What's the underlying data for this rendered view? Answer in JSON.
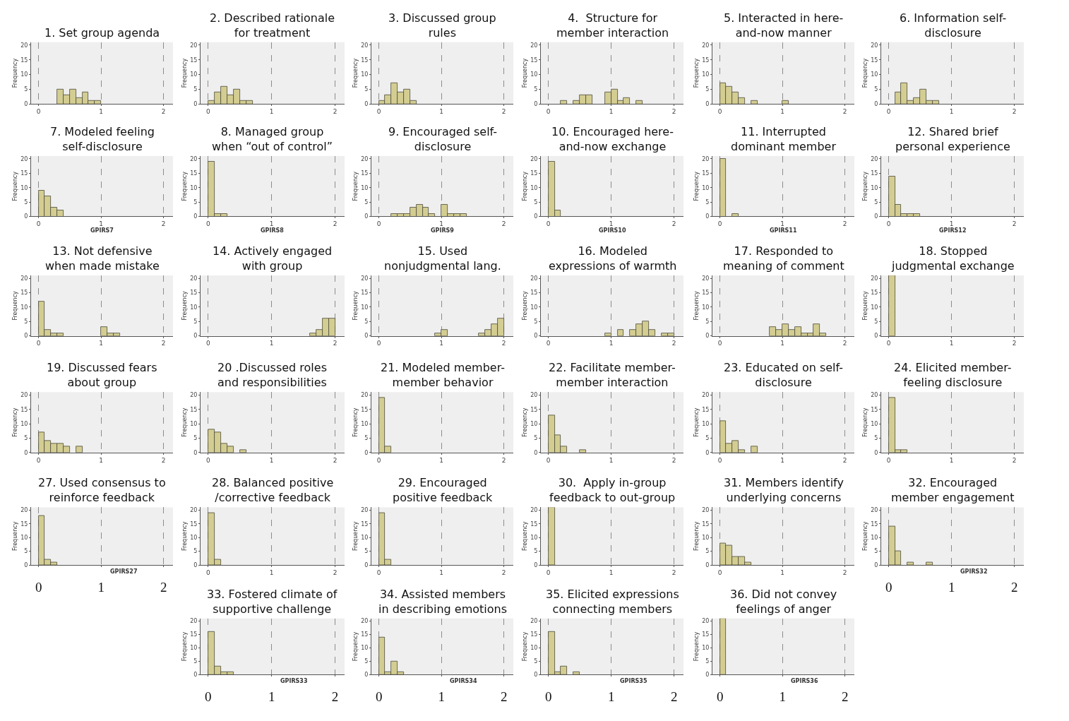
{
  "chart_data": [
    {
      "type": "histogram",
      "title": "1. Set group agenda",
      "ylabel": "Frequency",
      "bins": [
        0.3,
        0.4,
        0.5,
        0.6,
        0.7,
        0.8,
        0.9,
        1.0
      ],
      "values": [
        5,
        3,
        5,
        2,
        4,
        1,
        1
      ],
      "color": "#d4cd92",
      "xlim": [
        -0.12,
        2.15
      ],
      "xticks": [
        0,
        1,
        2
      ],
      "ylim": [
        0,
        21
      ],
      "yticks": [
        0,
        5,
        10,
        15,
        20
      ],
      "grid": "x"
    },
    {
      "type": "histogram",
      "title": "2. Described rationale\nfor treatment",
      "ylabel": "Frequency",
      "bins": [
        0,
        0.1,
        0.2,
        0.3,
        0.4,
        0.5,
        0.6,
        0.7
      ],
      "values": [
        1,
        4,
        6,
        3,
        5,
        1,
        1
      ],
      "color": "#d4cd92",
      "xlim": [
        -0.12,
        2.15
      ],
      "xticks": [
        0,
        1,
        2
      ],
      "ylim": [
        0,
        21
      ],
      "yticks": [
        0,
        5,
        10,
        15,
        20
      ],
      "grid": "x"
    },
    {
      "type": "histogram",
      "title": "3. Discussed group\nrules",
      "ylabel": "Frequency",
      "bins": [
        0,
        0.1,
        0.2,
        0.3,
        0.4,
        0.5,
        0.6
      ],
      "values": [
        1,
        3,
        7,
        4,
        5,
        1
      ],
      "color": "#d4cd92",
      "xlim": [
        -0.12,
        2.15
      ],
      "xticks": [
        0,
        1,
        2
      ],
      "ylim": [
        0,
        21
      ],
      "yticks": [
        0,
        5,
        10,
        15,
        20
      ],
      "grid": "x"
    },
    {
      "type": "histogram",
      "title": "4.  Structure for\nmember interaction",
      "ylabel": "Frequency",
      "bins": [
        0.2,
        0.3,
        0.4,
        0.5,
        0.6,
        0.7,
        0.8,
        0.9,
        1.0,
        1.1,
        1.2,
        1.3,
        1.4,
        1.5
      ],
      "values": [
        1,
        0,
        1,
        3,
        3,
        0,
        0,
        4,
        5,
        1,
        2,
        0,
        1
      ],
      "color": "#d4cd92",
      "xlim": [
        -0.12,
        2.15
      ],
      "xticks": [
        0,
        1,
        2
      ],
      "ylim": [
        0,
        21
      ],
      "yticks": [
        0,
        5,
        10,
        15,
        20
      ],
      "grid": "x"
    },
    {
      "type": "histogram",
      "title": "5. Interacted in here-\nand-now manner",
      "ylabel": "Frequency",
      "bins": [
        0,
        0.1,
        0.2,
        0.3,
        0.4,
        0.5,
        0.6,
        0.7,
        0.8,
        0.9,
        1.0,
        1.1
      ],
      "values": [
        7,
        6,
        4,
        2,
        0,
        1,
        0,
        0,
        0,
        0,
        1
      ],
      "color": "#d4cd92",
      "xlim": [
        -0.12,
        2.15
      ],
      "xticks": [
        0,
        1,
        2
      ],
      "ylim": [
        0,
        21
      ],
      "yticks": [
        0,
        5,
        10,
        15,
        20
      ],
      "grid": "x"
    },
    {
      "type": "histogram",
      "title": "6. Information self-\ndisclosure",
      "ylabel": "Frequency",
      "bins": [
        0.1,
        0.2,
        0.3,
        0.4,
        0.5,
        0.6,
        0.7,
        0.8
      ],
      "values": [
        4,
        7,
        1,
        2,
        5,
        1,
        1
      ],
      "color": "#d4cd92",
      "xlim": [
        -0.12,
        2.15
      ],
      "xticks": [
        0,
        1,
        2
      ],
      "ylim": [
        0,
        21
      ],
      "yticks": [
        0,
        5,
        10,
        15,
        20
      ],
      "grid": "x"
    },
    {
      "type": "histogram",
      "title": "7. Modeled feeling\nself-disclosure",
      "ylabel": "Frequency",
      "xlabel": "GPIRS7",
      "bins": [
        0,
        0.1,
        0.2,
        0.3,
        0.4
      ],
      "values": [
        9,
        7,
        3,
        2
      ],
      "color": "#d4cd92",
      "xlim": [
        -0.12,
        2.15
      ],
      "xticks": [
        0,
        1,
        2
      ],
      "ylim": [
        0,
        21
      ],
      "yticks": [
        0,
        5,
        10,
        15,
        20
      ],
      "grid": "x"
    },
    {
      "type": "histogram",
      "title": "8. Managed group\nwhen “out of control”",
      "ylabel": "Frequency",
      "xlabel": "GPIRS8",
      "bins": [
        0,
        0.1,
        0.2,
        0.3
      ],
      "values": [
        19,
        1,
        1
      ],
      "color": "#d4cd92",
      "xlim": [
        -0.12,
        2.15
      ],
      "xticks": [
        0,
        1,
        2
      ],
      "ylim": [
        0,
        21
      ],
      "yticks": [
        0,
        5,
        10,
        15,
        20
      ],
      "grid": "x"
    },
    {
      "type": "histogram",
      "title": "9. Encouraged self-\ndisclosure",
      "ylabel": "Frequency",
      "xlabel": "GPIRS9",
      "bins": [
        0.2,
        0.3,
        0.4,
        0.5,
        0.6,
        0.7,
        0.8,
        0.9,
        1.0,
        1.1,
        1.2,
        1.3,
        1.4
      ],
      "values": [
        1,
        1,
        1,
        3,
        4,
        3,
        1,
        0,
        4,
        1,
        1,
        1
      ],
      "color": "#d4cd92",
      "xlim": [
        -0.12,
        2.15
      ],
      "xticks": [
        0,
        1,
        2
      ],
      "ylim": [
        0,
        21
      ],
      "yticks": [
        0,
        5,
        10,
        15,
        20
      ],
      "grid": "x"
    },
    {
      "type": "histogram",
      "title": "10. Encouraged here-\nand-now exchange",
      "ylabel": "Frequency",
      "xlabel": "GPIRS10",
      "bins": [
        0,
        0.1,
        0.2
      ],
      "values": [
        19,
        2
      ],
      "color": "#d4cd92",
      "xlim": [
        -0.12,
        2.15
      ],
      "xticks": [
        0,
        1,
        2
      ],
      "ylim": [
        0,
        21
      ],
      "yticks": [
        0,
        5,
        10,
        15,
        20
      ],
      "grid": "x"
    },
    {
      "type": "histogram",
      "title": "11. Interrupted\ndominant member",
      "ylabel": "Frequency",
      "xlabel": "GPIRS11",
      "bins": [
        0,
        0.1,
        0.2,
        0.3
      ],
      "values": [
        20,
        0,
        1
      ],
      "color": "#d4cd92",
      "xlim": [
        -0.12,
        2.15
      ],
      "xticks": [
        0,
        1,
        2
      ],
      "ylim": [
        0,
        21
      ],
      "yticks": [
        0,
        5,
        10,
        15,
        20
      ],
      "grid": "x"
    },
    {
      "type": "histogram",
      "title": "12. Shared brief\npersonal experience",
      "ylabel": "Frequency",
      "xlabel": "GPIRS12",
      "bins": [
        0,
        0.1,
        0.2,
        0.3,
        0.4,
        0.5
      ],
      "values": [
        14,
        4,
        1,
        1,
        1
      ],
      "color": "#d4cd92",
      "xlim": [
        -0.12,
        2.15
      ],
      "xticks": [
        0,
        1,
        2
      ],
      "ylim": [
        0,
        21
      ],
      "yticks": [
        0,
        5,
        10,
        15,
        20
      ],
      "grid": "x"
    },
    {
      "type": "histogram",
      "title": "13. Not defensive\nwhen made mistake",
      "ylabel": "Frequency",
      "bins": [
        0,
        0.1,
        0.2,
        0.3,
        0.4,
        0.5,
        0.6,
        0.7,
        0.8,
        0.9,
        1.0,
        1.1,
        1.2,
        1.3
      ],
      "values": [
        12,
        2,
        1,
        1,
        0,
        0,
        0,
        0,
        0,
        0,
        3,
        1,
        1
      ],
      "color": "#d4cd92",
      "xlim": [
        -0.12,
        2.15
      ],
      "xticks": [
        0,
        1,
        2
      ],
      "ylim": [
        0,
        21
      ],
      "yticks": [
        0,
        5,
        10,
        15,
        20
      ],
      "grid": "x"
    },
    {
      "type": "histogram",
      "title": "14. Actively engaged\nwith group",
      "ylabel": "Frequency",
      "bins": [
        1.6,
        1.7,
        1.8,
        1.9,
        2.0
      ],
      "values": [
        1,
        2,
        6,
        6
      ],
      "color": "#d4cd92",
      "xlim": [
        -0.12,
        2.15
      ],
      "xticks": [
        0,
        1,
        2
      ],
      "ylim": [
        0,
        21
      ],
      "yticks": [
        0,
        5,
        10,
        15,
        20
      ],
      "grid": "x"
    },
    {
      "type": "histogram",
      "title": "15. Used\nnonjudgmental lang.",
      "ylabel": "Frequency",
      "bins": [
        0.9,
        1.0,
        1.1,
        1.2,
        1.3,
        1.4,
        1.5,
        1.6,
        1.7,
        1.8,
        1.9,
        2.0
      ],
      "values": [
        1,
        2,
        0,
        0,
        0,
        0,
        0,
        1,
        2,
        4,
        6
      ],
      "color": "#d4cd92",
      "xlim": [
        -0.12,
        2.15
      ],
      "xticks": [
        0,
        1,
        2
      ],
      "ylim": [
        0,
        21
      ],
      "yticks": [
        0,
        5,
        10,
        15,
        20
      ],
      "grid": "x"
    },
    {
      "type": "histogram",
      "title": "16. Modeled\nexpressions of warmth",
      "ylabel": "Frequency",
      "bins": [
        0.9,
        1.0,
        1.1,
        1.2,
        1.3,
        1.4,
        1.5,
        1.6,
        1.7,
        1.8,
        1.9,
        2.0
      ],
      "values": [
        1,
        0,
        2,
        0,
        2,
        4,
        5,
        2,
        0,
        1,
        1
      ],
      "color": "#d4cd92",
      "xlim": [
        -0.12,
        2.15
      ],
      "xticks": [
        0,
        1,
        2
      ],
      "ylim": [
        0,
        21
      ],
      "yticks": [
        0,
        5,
        10,
        15,
        20
      ],
      "grid": "x"
    },
    {
      "type": "histogram",
      "title": "17. Responded to\nmeaning of comment",
      "ylabel": "Frequency",
      "bins": [
        0.8,
        0.9,
        1.0,
        1.1,
        1.2,
        1.3,
        1.4,
        1.5,
        1.6,
        1.7
      ],
      "values": [
        3,
        2,
        4,
        2,
        3,
        1,
        1,
        4,
        1
      ],
      "color": "#d4cd92",
      "xlim": [
        -0.12,
        2.15
      ],
      "xticks": [
        0,
        1,
        2
      ],
      "ylim": [
        0,
        21
      ],
      "yticks": [
        0,
        5,
        10,
        15,
        20
      ],
      "grid": "x"
    },
    {
      "type": "histogram",
      "title": "18. Stopped\njudgmental exchange",
      "ylabel": "Frequency",
      "bins": [
        0,
        0.1
      ],
      "values": [
        21
      ],
      "color": "#d4cd92",
      "xlim": [
        -0.12,
        2.15
      ],
      "xticks": [
        0,
        1,
        2
      ],
      "ylim": [
        0,
        21
      ],
      "yticks": [
        0,
        5,
        10,
        15,
        20
      ],
      "grid": "x"
    },
    {
      "type": "histogram",
      "title": "19. Discussed fears\nabout group",
      "ylabel": "Frequency",
      "bins": [
        0,
        0.1,
        0.2,
        0.3,
        0.4,
        0.5,
        0.6,
        0.7
      ],
      "values": [
        7,
        4,
        3,
        3,
        2,
        0,
        2
      ],
      "color": "#d4cd92",
      "xlim": [
        -0.12,
        2.15
      ],
      "xticks": [
        0,
        1,
        2
      ],
      "ylim": [
        0,
        21
      ],
      "yticks": [
        0,
        5,
        10,
        15,
        20
      ],
      "grid": "x"
    },
    {
      "type": "histogram",
      "title": "20 .Discussed roles\nand responsibilities",
      "ylabel": "Frequency",
      "bins": [
        0,
        0.1,
        0.2,
        0.3,
        0.4,
        0.5,
        0.6
      ],
      "values": [
        8,
        7,
        3,
        2,
        0,
        1
      ],
      "color": "#d4cd92",
      "xlim": [
        -0.12,
        2.15
      ],
      "xticks": [
        0,
        1,
        2
      ],
      "ylim": [
        0,
        21
      ],
      "yticks": [
        0,
        5,
        10,
        15,
        20
      ],
      "grid": "x"
    },
    {
      "type": "histogram",
      "title": "21. Modeled member-\nmember behavior",
      "ylabel": "Frequency",
      "bins": [
        0,
        0.1,
        0.2
      ],
      "values": [
        19,
        2
      ],
      "color": "#d4cd92",
      "xlim": [
        -0.12,
        2.15
      ],
      "xticks": [
        0,
        1,
        2
      ],
      "ylim": [
        0,
        21
      ],
      "yticks": [
        0,
        5,
        10,
        15,
        20
      ],
      "grid": "x"
    },
    {
      "type": "histogram",
      "title": "22. Facilitate member-\nmember interaction",
      "ylabel": "Frequency",
      "bins": [
        0,
        0.1,
        0.2,
        0.3,
        0.4,
        0.5,
        0.6
      ],
      "values": [
        13,
        6,
        2,
        0,
        0,
        1
      ],
      "color": "#d4cd92",
      "xlim": [
        -0.12,
        2.15
      ],
      "xticks": [
        0,
        1,
        2
      ],
      "ylim": [
        0,
        21
      ],
      "yticks": [
        0,
        5,
        10,
        15,
        20
      ],
      "grid": "x"
    },
    {
      "type": "histogram",
      "title": "23. Educated on self-\ndisclosure",
      "ylabel": "Frequency",
      "bins": [
        0,
        0.1,
        0.2,
        0.3,
        0.4,
        0.5,
        0.6
      ],
      "values": [
        11,
        3,
        4,
        1,
        0,
        2
      ],
      "color": "#d4cd92",
      "xlim": [
        -0.12,
        2.15
      ],
      "xticks": [
        0,
        1,
        2
      ],
      "ylim": [
        0,
        21
      ],
      "yticks": [
        0,
        5,
        10,
        15,
        20
      ],
      "grid": "x"
    },
    {
      "type": "histogram",
      "title": "24. Elicited member-\nfeeling disclosure",
      "ylabel": "Frequency",
      "bins": [
        0,
        0.1,
        0.2,
        0.3
      ],
      "values": [
        19,
        1,
        1
      ],
      "color": "#d4cd92",
      "xlim": [
        -0.12,
        2.15
      ],
      "xticks": [
        0,
        1,
        2
      ],
      "ylim": [
        0,
        21
      ],
      "yticks": [
        0,
        5,
        10,
        15,
        20
      ],
      "grid": "x"
    },
    {
      "type": "histogram",
      "title": "27. Used consensus to\nreinforce feedback",
      "ylabel": "Frequency",
      "xlabel": "GPIRS27",
      "bins": [
        0,
        0.1,
        0.2,
        0.3
      ],
      "values": [
        18,
        2,
        1
      ],
      "color": "#d4cd92",
      "xlim": [
        -0.12,
        2.15
      ],
      "xticks": [
        0,
        1,
        2
      ],
      "ylim": [
        0,
        21
      ],
      "yticks": [
        0,
        5,
        10,
        15,
        20
      ],
      "grid": "x"
    },
    {
      "type": "histogram",
      "title": "28. Balanced positive\n/corrective feedback",
      "ylabel": "Frequency",
      "bins": [
        0,
        0.1,
        0.2
      ],
      "values": [
        19,
        2
      ],
      "color": "#d4cd92",
      "xlim": [
        -0.12,
        2.15
      ],
      "xticks": [
        0,
        1,
        2
      ],
      "ylim": [
        0,
        21
      ],
      "yticks": [
        0,
        5,
        10,
        15,
        20
      ],
      "grid": "x"
    },
    {
      "type": "histogram",
      "title": "29. Encouraged\npositive feedback",
      "ylabel": "Frequency",
      "bins": [
        0,
        0.1,
        0.2
      ],
      "values": [
        19,
        2
      ],
      "color": "#d4cd92",
      "xlim": [
        -0.12,
        2.15
      ],
      "xticks": [
        0,
        1,
        2
      ],
      "ylim": [
        0,
        21
      ],
      "yticks": [
        0,
        5,
        10,
        15,
        20
      ],
      "grid": "x"
    },
    {
      "type": "histogram",
      "title": "30.  Apply in-group\nfeedback to out-group",
      "ylabel": "Frequency",
      "bins": [
        0,
        0.1
      ],
      "values": [
        21
      ],
      "color": "#d4cd92",
      "xlim": [
        -0.12,
        2.15
      ],
      "xticks": [
        0,
        1,
        2
      ],
      "ylim": [
        0,
        21
      ],
      "yticks": [
        0,
        5,
        10,
        15,
        20
      ],
      "grid": "x"
    },
    {
      "type": "histogram",
      "title": "31. Members identify\nunderlying concerns",
      "ylabel": "Frequency",
      "bins": [
        0,
        0.1,
        0.2,
        0.3,
        0.4,
        0.5
      ],
      "values": [
        8,
        7,
        3,
        3,
        1
      ],
      "color": "#d4cd92",
      "xlim": [
        -0.12,
        2.15
      ],
      "xticks": [
        0,
        1,
        2
      ],
      "ylim": [
        0,
        21
      ],
      "yticks": [
        0,
        5,
        10,
        15,
        20
      ],
      "grid": "x"
    },
    {
      "type": "histogram",
      "title": "32. Encouraged\nmember engagement",
      "ylabel": "Frequency",
      "xlabel": "GPIRS32",
      "bins": [
        0,
        0.1,
        0.2,
        0.3,
        0.4,
        0.5,
        0.6,
        0.7
      ],
      "values": [
        14,
        5,
        0,
        1,
        0,
        0,
        1
      ],
      "color": "#d4cd92",
      "xlim": [
        -0.12,
        2.15
      ],
      "xticks": [
        0,
        1,
        2
      ],
      "ylim": [
        0,
        21
      ],
      "yticks": [
        0,
        5,
        10,
        15,
        20
      ],
      "grid": "x"
    },
    {
      "type": "histogram",
      "title": "33. Fostered climate of\nsupportive challenge",
      "ylabel": "Frequency",
      "xlabel": "GPIRS33",
      "bins": [
        0,
        0.1,
        0.2,
        0.3,
        0.4
      ],
      "values": [
        16,
        3,
        1,
        1
      ],
      "color": "#d4cd92",
      "xlim": [
        -0.12,
        2.15
      ],
      "xticks": [
        0,
        1,
        2
      ],
      "ylim": [
        0,
        21
      ],
      "yticks": [
        0,
        5,
        10,
        15,
        20
      ],
      "grid": "x"
    },
    {
      "type": "histogram",
      "title": "34. Assisted members\nin describing emotions",
      "ylabel": "Frequency",
      "xlabel": "GPIRS34",
      "bins": [
        0,
        0.1,
        0.2,
        0.3,
        0.4
      ],
      "values": [
        14,
        1,
        5,
        1
      ],
      "color": "#d4cd92",
      "xlim": [
        -0.12,
        2.15
      ],
      "xticks": [
        0,
        1,
        2
      ],
      "ylim": [
        0,
        21
      ],
      "yticks": [
        0,
        5,
        10,
        15,
        20
      ],
      "grid": "x"
    },
    {
      "type": "histogram",
      "title": "35. Elicited expressions\nconnecting members",
      "ylabel": "Frequency",
      "xlabel": "GPIRS35",
      "bins": [
        0,
        0.1,
        0.2,
        0.3,
        0.4,
        0.5
      ],
      "values": [
        16,
        1,
        3,
        0,
        1
      ],
      "color": "#d4cd92",
      "xlim": [
        -0.12,
        2.15
      ],
      "xticks": [
        0,
        1,
        2
      ],
      "ylim": [
        0,
        21
      ],
      "yticks": [
        0,
        5,
        10,
        15,
        20
      ],
      "grid": "x"
    },
    {
      "type": "histogram",
      "title": "36. Did not convey\nfeelings of anger",
      "ylabel": "Frequency",
      "xlabel": "GPIRS36",
      "bins": [
        0,
        0.1
      ],
      "values": [
        21
      ],
      "color": "#d4cd92",
      "xlim": [
        -0.12,
        2.15
      ],
      "xticks": [
        0,
        1,
        2
      ],
      "ylim": [
        0,
        21
      ],
      "yticks": [
        0,
        5,
        10,
        15,
        20
      ],
      "grid": "x"
    }
  ]
}
